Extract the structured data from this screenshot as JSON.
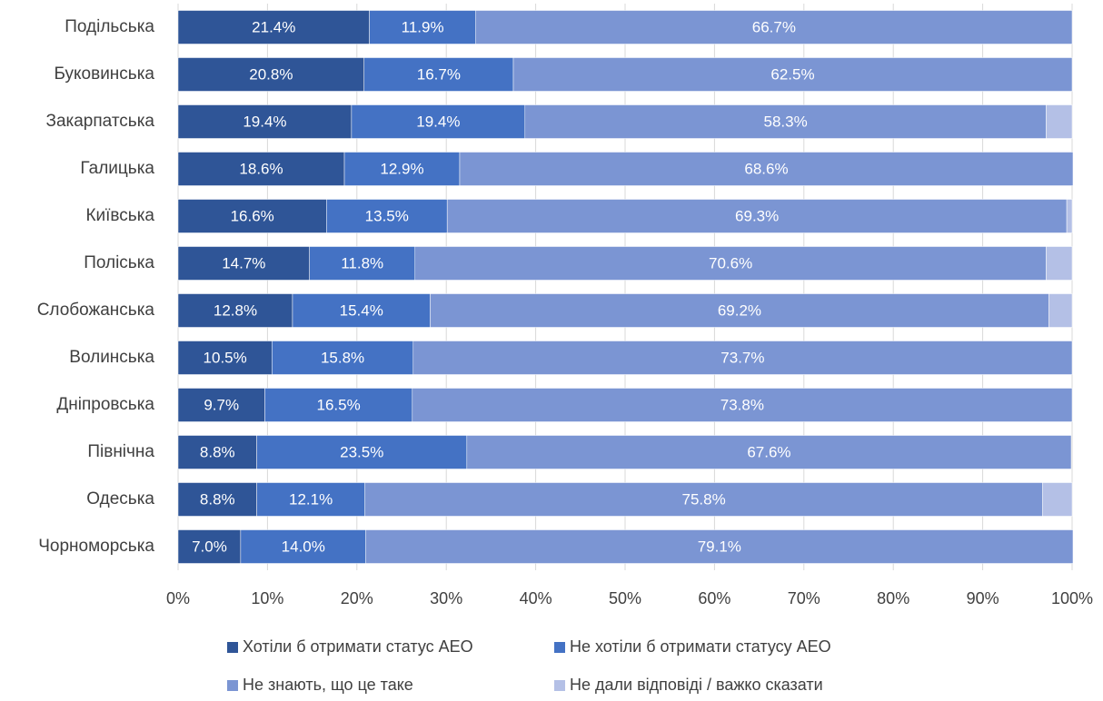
{
  "chart_data": {
    "type": "stacked_bar_horizontal",
    "categories": [
      "Подільська",
      "Буковинська",
      "Закарпатська",
      "Галицька",
      "Київська",
      "Поліська",
      "Слобожанська",
      "Волинська",
      "Дніпровська",
      "Північна",
      "Одеська",
      "Чорноморська"
    ],
    "series": [
      {
        "name": "Хотіли б отримати статус АЕО",
        "color": "#2f5597",
        "values": [
          21.4,
          20.8,
          19.4,
          18.6,
          16.6,
          14.7,
          12.8,
          10.5,
          9.7,
          8.8,
          8.8,
          7.0
        ],
        "value_labels": [
          "21.4%",
          "20.8%",
          "19.4%",
          "18.6%",
          "16.6%",
          "14.7%",
          "12.8%",
          "10.5%",
          "9.7%",
          "8.8%",
          "8.8%",
          "7.0%"
        ]
      },
      {
        "name": "Не хотіли б отримати статусу АЕО",
        "color": "#4472c4",
        "values": [
          11.9,
          16.7,
          19.4,
          12.9,
          13.5,
          11.8,
          15.4,
          15.8,
          16.5,
          23.5,
          12.1,
          14.0
        ],
        "value_labels": [
          "11.9%",
          "16.7%",
          "19.4%",
          "12.9%",
          "13.5%",
          "11.8%",
          "15.4%",
          "15.8%",
          "16.5%",
          "23.5%",
          "12.1%",
          "14.0%"
        ]
      },
      {
        "name": "Не знають, що це таке",
        "color": "#7b95d3",
        "values": [
          66.7,
          62.5,
          58.3,
          68.6,
          69.3,
          70.6,
          69.2,
          73.7,
          73.8,
          67.6,
          75.8,
          79.1
        ],
        "value_labels": [
          "66.7%",
          "62.5%",
          "58.3%",
          "68.6%",
          "69.3%",
          "70.6%",
          "69.2%",
          "73.7%",
          "73.8%",
          "67.6%",
          "75.8%",
          "79.1%"
        ]
      },
      {
        "name": "Не дали відповіді / важко сказати",
        "color": "#b4c0e6",
        "values": [
          0,
          0,
          2.9,
          0,
          0.6,
          2.9,
          2.6,
          0,
          0,
          0,
          3.3,
          0
        ]
      }
    ],
    "xlim": [
      0,
      100
    ],
    "xticks": [
      {
        "value": 0,
        "label": "0%"
      },
      {
        "value": 10,
        "label": "10%"
      },
      {
        "value": 20,
        "label": "20%"
      },
      {
        "value": 30,
        "label": "30%"
      },
      {
        "value": 40,
        "label": "40%"
      },
      {
        "value": 50,
        "label": "50%"
      },
      {
        "value": 60,
        "label": "60%"
      },
      {
        "value": 70,
        "label": "70%"
      },
      {
        "value": 80,
        "label": "80%"
      },
      {
        "value": 90,
        "label": "90%"
      },
      {
        "value": 100,
        "label": "100%"
      }
    ],
    "grid": true,
    "legend": "bottom"
  }
}
